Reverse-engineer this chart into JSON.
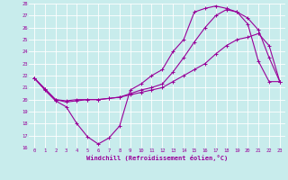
{
  "xlabel": "Windchill (Refroidissement éolien,°C)",
  "bg_color": "#c8ecec",
  "line_color": "#990099",
  "grid_color": "#ffffff",
  "xlim": [
    -0.5,
    23.5
  ],
  "ylim": [
    16,
    28
  ],
  "xticks": [
    0,
    1,
    2,
    3,
    4,
    5,
    6,
    7,
    8,
    9,
    10,
    11,
    12,
    13,
    14,
    15,
    16,
    17,
    18,
    19,
    20,
    21,
    22,
    23
  ],
  "yticks": [
    16,
    17,
    18,
    19,
    20,
    21,
    22,
    23,
    24,
    25,
    26,
    27,
    28
  ],
  "line1_x": [
    0,
    1,
    2,
    3,
    4,
    5,
    6,
    7,
    8,
    9,
    10,
    11,
    12,
    13,
    14,
    15,
    16,
    17,
    18,
    19,
    20,
    21,
    22,
    23
  ],
  "line1_y": [
    21.8,
    20.8,
    19.9,
    19.4,
    18.0,
    16.9,
    16.3,
    16.8,
    17.8,
    20.8,
    21.3,
    22.0,
    22.5,
    24.0,
    25.0,
    27.3,
    27.6,
    27.8,
    27.6,
    27.3,
    26.3,
    23.2,
    21.5,
    21.5
  ],
  "line2_x": [
    0,
    1,
    2,
    3,
    4,
    5,
    6,
    7,
    8,
    9,
    10,
    11,
    12,
    13,
    14,
    15,
    16,
    17,
    18,
    19,
    20,
    21,
    22,
    23
  ],
  "line2_y": [
    21.8,
    20.9,
    20.0,
    19.8,
    19.9,
    20.0,
    20.0,
    20.1,
    20.2,
    20.5,
    20.8,
    21.0,
    21.3,
    22.3,
    23.5,
    24.8,
    26.0,
    27.0,
    27.5,
    27.3,
    26.8,
    25.8,
    23.5,
    21.5
  ],
  "line3_x": [
    0,
    1,
    2,
    3,
    4,
    5,
    6,
    7,
    8,
    9,
    10,
    11,
    12,
    13,
    14,
    15,
    16,
    17,
    18,
    19,
    20,
    21,
    22,
    23
  ],
  "line3_y": [
    21.8,
    20.9,
    20.0,
    19.9,
    20.0,
    20.0,
    20.0,
    20.1,
    20.2,
    20.4,
    20.6,
    20.8,
    21.0,
    21.5,
    22.0,
    22.5,
    23.0,
    23.8,
    24.5,
    25.0,
    25.2,
    25.5,
    24.5,
    21.5
  ]
}
